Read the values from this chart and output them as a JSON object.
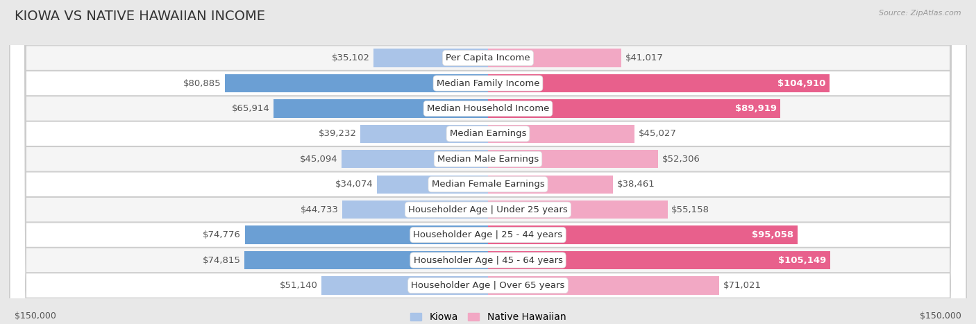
{
  "title": "KIOWA VS NATIVE HAWAIIAN INCOME",
  "source": "Source: ZipAtlas.com",
  "categories": [
    "Per Capita Income",
    "Median Family Income",
    "Median Household Income",
    "Median Earnings",
    "Median Male Earnings",
    "Median Female Earnings",
    "Householder Age | Under 25 years",
    "Householder Age | 25 - 44 years",
    "Householder Age | 45 - 64 years",
    "Householder Age | Over 65 years"
  ],
  "kiowa_values": [
    35102,
    80885,
    65914,
    39232,
    45094,
    34074,
    44733,
    74776,
    74815,
    51140
  ],
  "native_hawaiian_values": [
    41017,
    104910,
    89919,
    45027,
    52306,
    38461,
    55158,
    95058,
    105149,
    71021
  ],
  "kiowa_labels": [
    "$35,102",
    "$80,885",
    "$65,914",
    "$39,232",
    "$45,094",
    "$34,074",
    "$44,733",
    "$74,776",
    "$74,815",
    "$51,140"
  ],
  "native_hawaiian_labels": [
    "$41,017",
    "$104,910",
    "$89,919",
    "$45,027",
    "$52,306",
    "$38,461",
    "$55,158",
    "$95,058",
    "$105,149",
    "$71,021"
  ],
  "kiowa_color_light": "#aac4e8",
  "kiowa_color_dark": "#6b9fd4",
  "native_hawaiian_color_light": "#f2a8c4",
  "native_hawaiian_color_dark": "#e8608c",
  "max_value": 150000,
  "background_color": "#e8e8e8",
  "row_bg_even": "#f5f5f5",
  "row_bg_odd": "#ffffff",
  "row_border_color": "#cccccc",
  "label_color": "#555555",
  "label_fontsize": 9.5,
  "title_fontsize": 14,
  "source_fontsize": 8,
  "axis_label_fontsize": 9,
  "legend_fontsize": 10,
  "kiowa_dark_threshold": 60000,
  "nh_dark_threshold": 85000,
  "white_label_inside_k_threshold": 60000,
  "white_label_inside_nh_threshold": 85000
}
